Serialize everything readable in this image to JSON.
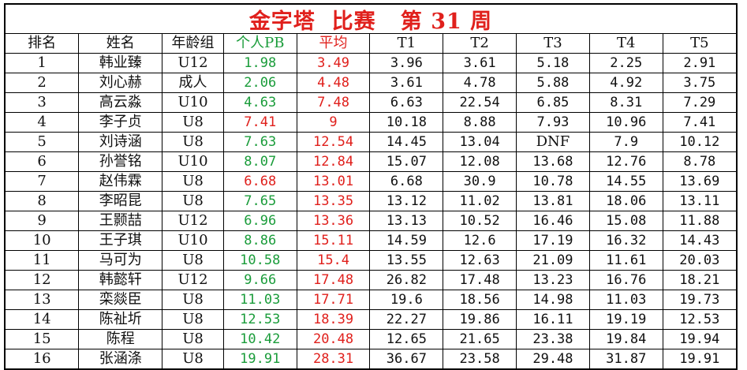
{
  "title": "金字塔  比赛   第 31 周",
  "columns": [
    "排名",
    "姓名",
    "年龄组",
    "个人PB",
    "平均",
    "T1",
    "T2",
    "T3",
    "T4",
    "T5"
  ],
  "rows": [
    {
      "rank": "1",
      "name": "韩业臻",
      "group": "U12",
      "pb": "1.98",
      "avg": "3.49",
      "t1": "3.96",
      "t2": "3.61",
      "t3": "5.18",
      "t4": "2.25",
      "t5": "2.91",
      "pb_color": "green"
    },
    {
      "rank": "2",
      "name": "刘心赫",
      "group": "成人",
      "pb": "2.06",
      "avg": "4.48",
      "t1": "3.61",
      "t2": "4.78",
      "t3": "5.88",
      "t4": "4.92",
      "t5": "3.75",
      "pb_color": "green"
    },
    {
      "rank": "3",
      "name": "高云淼",
      "group": "U10",
      "pb": "4.63",
      "avg": "7.48",
      "t1": "6.63",
      "t2": "22.54",
      "t3": "6.85",
      "t4": "8.31",
      "t5": "7.29",
      "pb_color": "green"
    },
    {
      "rank": "4",
      "name": "李子贞",
      "group": "U8",
      "pb": "7.41",
      "avg": "9",
      "t1": "10.18",
      "t2": "8.88",
      "t3": "7.93",
      "t4": "10.96",
      "t5": "7.41",
      "pb_color": "red"
    },
    {
      "rank": "5",
      "name": "刘诗涵",
      "group": "U8",
      "pb": "7.63",
      "avg": "12.54",
      "t1": "14.45",
      "t2": "13.04",
      "t3": "DNF",
      "t4": "7.9",
      "t5": "10.12",
      "pb_color": "green"
    },
    {
      "rank": "6",
      "name": "孙誉铭",
      "group": "U10",
      "pb": "8.07",
      "avg": "12.84",
      "t1": "15.07",
      "t2": "12.08",
      "t3": "13.68",
      "t4": "12.76",
      "t5": "8.78",
      "pb_color": "green"
    },
    {
      "rank": "7",
      "name": "赵伟霖",
      "group": "U8",
      "pb": "6.68",
      "avg": "13.01",
      "t1": "6.68",
      "t2": "30.9",
      "t3": "10.78",
      "t4": "14.55",
      "t5": "13.69",
      "pb_color": "red"
    },
    {
      "rank": "8",
      "name": "李昭昆",
      "group": "U8",
      "pb": "7.65",
      "avg": "13.35",
      "t1": "13.12",
      "t2": "11.02",
      "t3": "13.81",
      "t4": "18.06",
      "t5": "13.11",
      "pb_color": "green"
    },
    {
      "rank": "9",
      "name": "王颢喆",
      "group": "U12",
      "pb": "6.96",
      "avg": "13.36",
      "t1": "13.13",
      "t2": "10.52",
      "t3": "16.46",
      "t4": "15.08",
      "t5": "11.88",
      "pb_color": "green"
    },
    {
      "rank": "10",
      "name": "王子琪",
      "group": "U10",
      "pb": "8.86",
      "avg": "15.11",
      "t1": "14.59",
      "t2": "12.6",
      "t3": "17.19",
      "t4": "16.32",
      "t5": "14.43",
      "pb_color": "green"
    },
    {
      "rank": "11",
      "name": "马可为",
      "group": "U8",
      "pb": "10.58",
      "avg": "15.4",
      "t1": "13.55",
      "t2": "12.63",
      "t3": "21.09",
      "t4": "11.61",
      "t5": "20.03",
      "pb_color": "green"
    },
    {
      "rank": "12",
      "name": "韩懿轩",
      "group": "U12",
      "pb": "9.66",
      "avg": "17.48",
      "t1": "26.82",
      "t2": "17.48",
      "t3": "13.23",
      "t4": "16.76",
      "t5": "18.21",
      "pb_color": "green"
    },
    {
      "rank": "13",
      "name": "栾燚臣",
      "group": "U8",
      "pb": "11.03",
      "avg": "17.71",
      "t1": "19.6",
      "t2": "18.56",
      "t3": "14.98",
      "t4": "11.03",
      "t5": "19.73",
      "pb_color": "green"
    },
    {
      "rank": "14",
      "name": "陈祉圻",
      "group": "U8",
      "pb": "12.53",
      "avg": "18.39",
      "t1": "22.27",
      "t2": "19.86",
      "t3": "16.11",
      "t4": "19.19",
      "t5": "12.53",
      "pb_color": "green"
    },
    {
      "rank": "15",
      "name": "陈程",
      "group": "U8",
      "pb": "10.42",
      "avg": "20.48",
      "t1": "12.65",
      "t2": "21.65",
      "t3": "23.38",
      "t4": "19.84",
      "t5": "19.94",
      "pb_color": "green"
    },
    {
      "rank": "16",
      "name": "张涵涤",
      "group": "U8",
      "pb": "19.91",
      "avg": "28.31",
      "t1": "36.67",
      "t2": "23.58",
      "t3": "29.48",
      "t4": "31.87",
      "t5": "19.91",
      "pb_color": "green"
    }
  ],
  "colors": {
    "title": "#e0201c",
    "green": "#1a9c3a",
    "red": "#e0201c"
  }
}
